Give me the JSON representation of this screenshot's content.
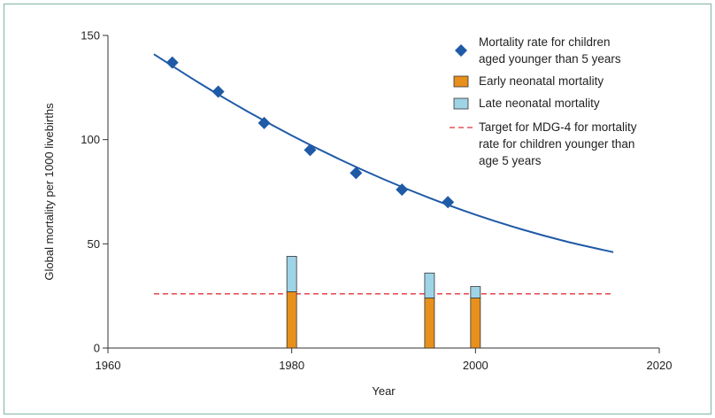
{
  "chart_data": {
    "type": "line",
    "title": "",
    "xlabel": "Year",
    "ylabel": "Global mortality per 1000 livebirths",
    "xlim": [
      1960,
      2020
    ],
    "ylim": [
      0,
      150
    ],
    "xticks": [
      1960,
      1980,
      2000,
      2020
    ],
    "yticks": [
      0,
      50,
      100,
      150
    ],
    "grid": false,
    "legend_position": "top-right",
    "colors": {
      "series_marker": "#1f5aa6",
      "trend_line": "#1f5aa6",
      "early_neonatal": "#e8901c",
      "late_neonatal": "#9fd3e6",
      "target": "#e0333a"
    },
    "under5_mortality": {
      "name": "Mortality rate for children aged younger than 5 years",
      "x": [
        1967,
        1972,
        1977,
        1982,
        1987,
        1992,
        1997
      ],
      "y": [
        137,
        123,
        108,
        95,
        84,
        76,
        70
      ]
    },
    "trend_curve": {
      "x": [
        1965,
        1970,
        1975,
        1980,
        1985,
        1990,
        1995,
        2000,
        2005,
        2010,
        2015
      ],
      "y": [
        141,
        127,
        114,
        102,
        91,
        81,
        72,
        64,
        57,
        51,
        46
      ]
    },
    "neonatal_bars": {
      "years": [
        1980,
        1995,
        2000
      ],
      "early": [
        27,
        24,
        24
      ],
      "late": [
        17,
        12,
        5.5
      ]
    },
    "target_line": {
      "name": "Target for MDG-4 for mortality rate for children younger than age 5 years",
      "value": 26,
      "x_range": [
        1965,
        2015
      ]
    },
    "legend": [
      {
        "type": "marker",
        "lines": [
          "Mortality rate for children",
          "aged younger than 5 years"
        ]
      },
      {
        "type": "early",
        "lines": [
          "Early neonatal mortality"
        ]
      },
      {
        "type": "late",
        "lines": [
          "Late neonatal mortality"
        ]
      },
      {
        "type": "target",
        "lines": [
          "Target for MDG-4 for mortality",
          "rate for children younger than",
          "age 5 years"
        ]
      }
    ]
  }
}
